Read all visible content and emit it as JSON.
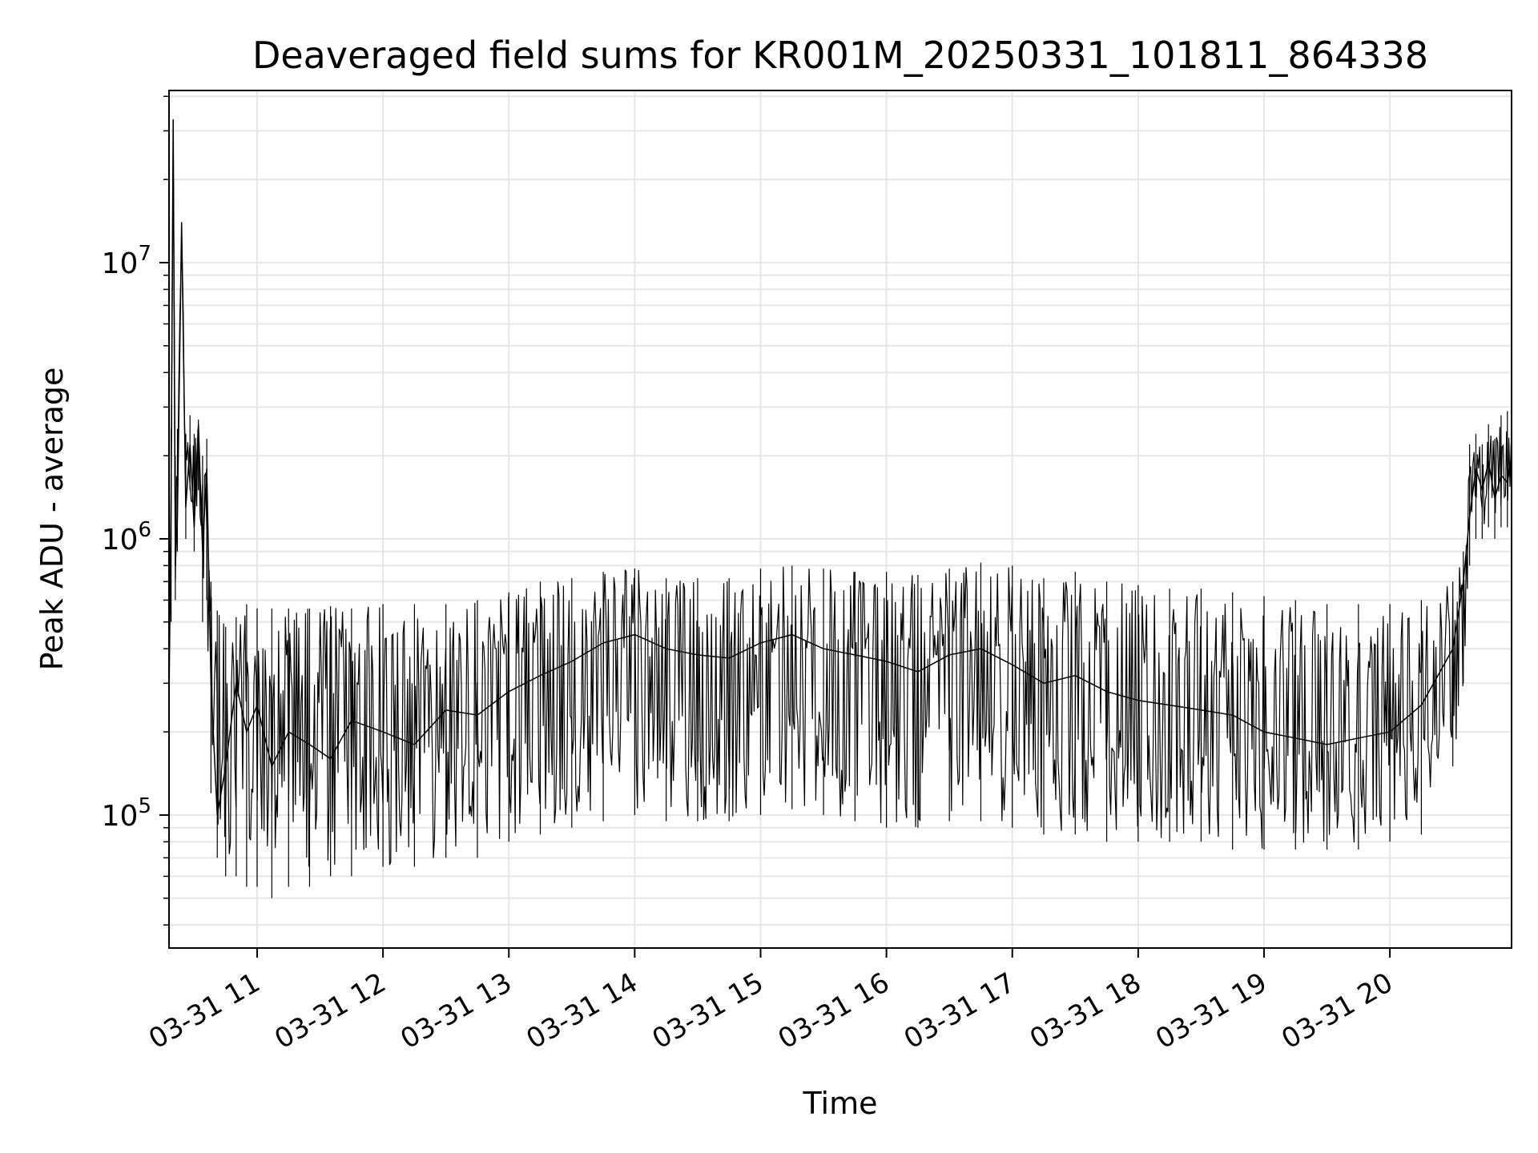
{
  "chart_data": {
    "type": "line",
    "title": "Deaveraged field sums for KR001M_20250331_101811_864338",
    "xlabel": "Time",
    "ylabel": "Peak ADU - average",
    "y_scale": "log",
    "ylim": [
      33000,
      42000000
    ],
    "xlim": [
      "2025-03-31 10:18",
      "2025-03-31 20:58"
    ],
    "grid": true,
    "x_ticks": [
      {
        "t": "2025-03-31 11:00",
        "label": "03-31 11"
      },
      {
        "t": "2025-03-31 12:00",
        "label": "03-31 12"
      },
      {
        "t": "2025-03-31 13:00",
        "label": "03-31 13"
      },
      {
        "t": "2025-03-31 14:00",
        "label": "03-31 14"
      },
      {
        "t": "2025-03-31 15:00",
        "label": "03-31 15"
      },
      {
        "t": "2025-03-31 16:00",
        "label": "03-31 16"
      },
      {
        "t": "2025-03-31 17:00",
        "label": "03-31 17"
      },
      {
        "t": "2025-03-31 18:00",
        "label": "03-31 18"
      },
      {
        "t": "2025-03-31 19:00",
        "label": "03-31 19"
      },
      {
        "t": "2025-03-31 20:00",
        "label": "03-31 20"
      }
    ],
    "y_ticks": [
      {
        "value": 100000,
        "base": "10",
        "exp": "5"
      },
      {
        "value": 1000000,
        "base": "10",
        "exp": "6"
      },
      {
        "value": 10000000,
        "base": "10",
        "exp": "7"
      }
    ],
    "line_color": "#000000",
    "grid_color": "#e6e6e6",
    "series": [
      {
        "x": [
          "2025-03-31 10:18",
          "2025-03-31 10:19",
          "2025-03-31 10:20",
          "2025-03-31 10:21",
          "2025-03-31 10:22",
          "2025-03-31 10:24",
          "2025-03-31 10:26",
          "2025-03-31 10:28",
          "2025-03-31 10:30",
          "2025-03-31 10:32",
          "2025-03-31 10:34",
          "2025-03-31 10:36",
          "2025-03-31 10:38",
          "2025-03-31 10:41",
          "2025-03-31 10:45",
          "2025-03-31 10:50",
          "2025-03-31 10:55",
          "2025-03-31 11:00",
          "2025-03-31 11:07",
          "2025-03-31 11:15",
          "2025-03-31 11:25",
          "2025-03-31 11:35",
          "2025-03-31 11:45",
          "2025-03-31 12:00",
          "2025-03-31 12:15",
          "2025-03-31 12:30",
          "2025-03-31 12:45",
          "2025-03-31 13:00",
          "2025-03-31 13:15",
          "2025-03-31 13:30",
          "2025-03-31 13:45",
          "2025-03-31 14:00",
          "2025-03-31 14:15",
          "2025-03-31 14:30",
          "2025-03-31 14:45",
          "2025-03-31 15:00",
          "2025-03-31 15:15",
          "2025-03-31 15:30",
          "2025-03-31 15:45",
          "2025-03-31 16:00",
          "2025-03-31 16:15",
          "2025-03-31 16:30",
          "2025-03-31 16:45",
          "2025-03-31 17:00",
          "2025-03-31 17:15",
          "2025-03-31 17:30",
          "2025-03-31 17:45",
          "2025-03-31 18:00",
          "2025-03-31 18:15",
          "2025-03-31 18:30",
          "2025-03-31 18:45",
          "2025-03-31 19:00",
          "2025-03-31 19:15",
          "2025-03-31 19:30",
          "2025-03-31 19:45",
          "2025-03-31 20:00",
          "2025-03-31 20:15",
          "2025-03-31 20:30",
          "2025-03-31 20:35",
          "2025-03-31 20:38",
          "2025-03-31 20:41",
          "2025-03-31 20:44",
          "2025-03-31 20:47",
          "2025-03-31 20:50",
          "2025-03-31 20:53",
          "2025-03-31 20:56",
          "2025-03-31 20:58"
        ],
        "y": [
          250000,
          1500000,
          33000000,
          800000,
          1200000,
          14000000,
          1300000,
          2200000,
          1100000,
          2600000,
          900000,
          1800000,
          300000,
          100000,
          150000,
          300000,
          200000,
          250000,
          150000,
          200000,
          180000,
          160000,
          220000,
          200000,
          180000,
          240000,
          230000,
          280000,
          320000,
          360000,
          420000,
          450000,
          400000,
          380000,
          370000,
          420000,
          450000,
          400000,
          380000,
          360000,
          330000,
          380000,
          400000,
          350000,
          300000,
          320000,
          280000,
          260000,
          250000,
          240000,
          230000,
          200000,
          190000,
          180000,
          190000,
          200000,
          250000,
          400000,
          700000,
          1200000,
          1800000,
          1500000,
          1900000,
          1400000,
          1700000,
          1600000,
          2000000
        ],
        "lower": [
          250000,
          500000,
          30000000,
          600000,
          900000,
          12000000,
          1000000,
          1500000,
          900000,
          1500000,
          500000,
          600000,
          120000,
          70000,
          60000,
          60000,
          55000,
          55000,
          50000,
          55000,
          55000,
          60000,
          60000,
          65000,
          65000,
          70000,
          70000,
          80000,
          85000,
          90000,
          95000,
          100000,
          95000,
          95000,
          95000,
          100000,
          105000,
          100000,
          95000,
          90000,
          90000,
          95000,
          95000,
          90000,
          85000,
          85000,
          80000,
          80000,
          80000,
          80000,
          75000,
          75000,
          75000,
          75000,
          75000,
          80000,
          85000,
          150000,
          300000,
          800000,
          1000000,
          1000000,
          1100000,
          1000000,
          1100000,
          1100000,
          1200000
        ],
        "upper": [
          250000,
          2500000,
          33000000,
          2000000,
          2500000,
          14000000,
          2400000,
          2800000,
          2400000,
          2700000,
          2000000,
          2300000,
          700000,
          550000,
          480000,
          520000,
          580000,
          560000,
          560000,
          560000,
          560000,
          570000,
          560000,
          580000,
          580000,
          580000,
          600000,
          640000,
          700000,
          720000,
          760000,
          780000,
          720000,
          720000,
          720000,
          780000,
          800000,
          780000,
          760000,
          760000,
          740000,
          780000,
          820000,
          800000,
          720000,
          760000,
          700000,
          680000,
          660000,
          660000,
          640000,
          620000,
          600000,
          580000,
          580000,
          580000,
          600000,
          700000,
          900000,
          2200000,
          2400000,
          2200000,
          2600000,
          2300000,
          2800000,
          2900000,
          3100000
        ]
      }
    ]
  }
}
